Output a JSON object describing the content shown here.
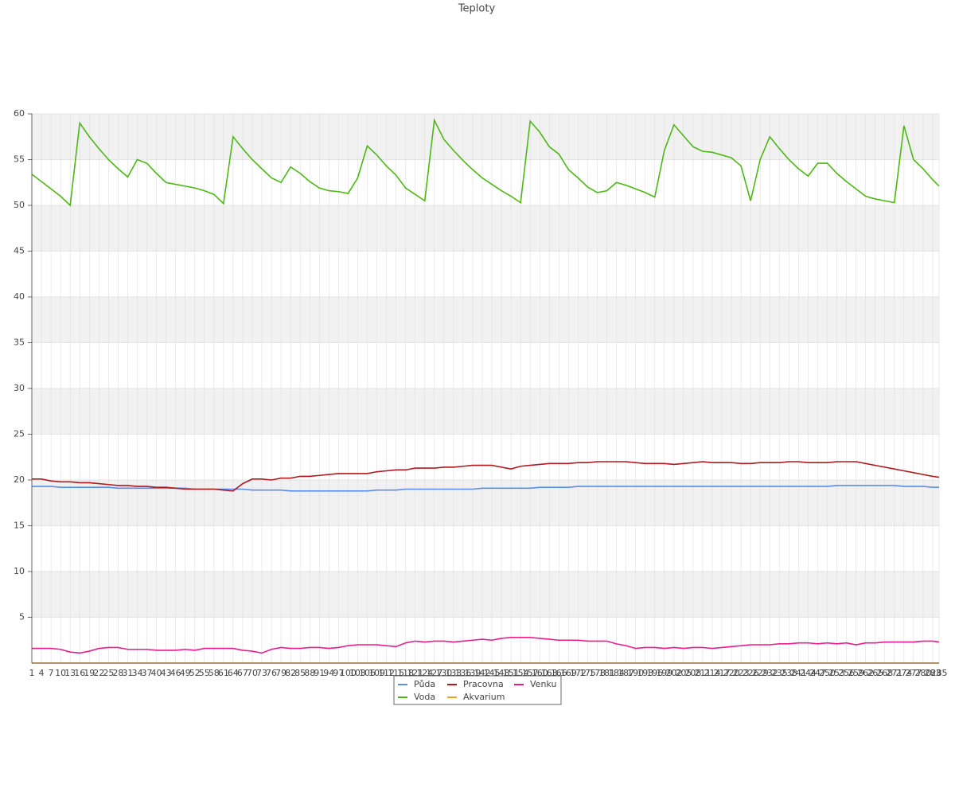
{
  "chart_data": {
    "type": "line",
    "title": "Teploty",
    "x": [
      1,
      4,
      7,
      10,
      13,
      16,
      19,
      22,
      25,
      28,
      31,
      34,
      37,
      40,
      43,
      46,
      49,
      52,
      55,
      58,
      61,
      64,
      67,
      70,
      73,
      76,
      79,
      82,
      85,
      88,
      91,
      94,
      97,
      100,
      103,
      106,
      109,
      112,
      115,
      118,
      121,
      124,
      127,
      130,
      133,
      136,
      139,
      142,
      145,
      148,
      151,
      154,
      157,
      160,
      163,
      166,
      169,
      172,
      175,
      178,
      181,
      184,
      187,
      190,
      193,
      196,
      199,
      202,
      205,
      208,
      211,
      214,
      217,
      220,
      223,
      226,
      229,
      232,
      235,
      238,
      241,
      244,
      247,
      250,
      253,
      256,
      259,
      262,
      265,
      268,
      271,
      274,
      277,
      280,
      283,
      285
    ],
    "xlim": [
      1,
      285
    ],
    "ylim": [
      0,
      60
    ],
    "yticks": [
      5,
      10,
      15,
      20,
      25,
      30,
      35,
      40,
      45,
      50,
      55,
      60
    ],
    "grid": true,
    "legend": "bottom",
    "series": [
      {
        "name": "Půda",
        "color": "#5b8def",
        "values": [
          19.3,
          19.3,
          19.3,
          19.2,
          19.2,
          19.2,
          19.2,
          19.2,
          19.2,
          19.1,
          19.1,
          19.1,
          19.1,
          19.1,
          19.1,
          19.1,
          19.1,
          19.0,
          19.0,
          19.0,
          19.0,
          19.0,
          19.0,
          18.9,
          18.9,
          18.9,
          18.9,
          18.8,
          18.8,
          18.8,
          18.8,
          18.8,
          18.8,
          18.8,
          18.8,
          18.8,
          18.9,
          18.9,
          18.9,
          19.0,
          19.0,
          19.0,
          19.0,
          19.0,
          19.0,
          19.0,
          19.0,
          19.1,
          19.1,
          19.1,
          19.1,
          19.1,
          19.1,
          19.2,
          19.2,
          19.2,
          19.2,
          19.3,
          19.3,
          19.3,
          19.3,
          19.3,
          19.3,
          19.3,
          19.3,
          19.3,
          19.3,
          19.3,
          19.3,
          19.3,
          19.3,
          19.3,
          19.3,
          19.3,
          19.3,
          19.3,
          19.3,
          19.3,
          19.3,
          19.3,
          19.3,
          19.3,
          19.3,
          19.3,
          19.4,
          19.4,
          19.4,
          19.4,
          19.4,
          19.4,
          19.4,
          19.3,
          19.3,
          19.3,
          19.2,
          19.2
        ]
      },
      {
        "name": "Voda",
        "color": "#4cb814",
        "values": [
          53.4,
          52.6,
          51.8,
          51.0,
          50.0,
          59.0,
          57.5,
          56.2,
          55.0,
          54.0,
          53.1,
          55.0,
          54.6,
          53.5,
          52.5,
          52.3,
          52.1,
          51.9,
          51.6,
          51.2,
          50.2,
          57.5,
          56.2,
          55.0,
          54.0,
          53.0,
          52.5,
          54.2,
          53.5,
          52.6,
          51.9,
          51.6,
          51.5,
          51.3,
          53.0,
          56.5,
          55.5,
          54.3,
          53.3,
          51.9,
          51.2,
          50.5,
          59.3,
          57.2,
          56.0,
          54.9,
          53.9,
          53.0,
          52.3,
          51.6,
          51.0,
          50.3,
          59.2,
          58.0,
          56.4,
          55.6,
          53.9,
          53.0,
          52.0,
          51.4,
          51.6,
          52.5,
          52.2,
          51.8,
          51.4,
          50.9,
          56.0,
          58.8,
          57.6,
          56.4,
          55.9,
          55.8,
          55.5,
          55.2,
          54.3,
          50.5,
          55.0,
          57.5,
          56.2,
          55.0,
          54.0,
          53.2,
          54.6,
          54.6,
          53.5,
          52.6,
          51.8,
          51.0,
          50.7,
          50.5,
          50.3,
          58.7,
          55.0,
          54.0,
          52.8,
          52.1
        ]
      },
      {
        "name": "Pracovna",
        "color": "#b0191e",
        "values": [
          20.1,
          20.1,
          19.9,
          19.8,
          19.8,
          19.7,
          19.7,
          19.6,
          19.5,
          19.4,
          19.4,
          19.3,
          19.3,
          19.2,
          19.2,
          19.1,
          19.0,
          19.0,
          19.0,
          19.0,
          18.9,
          18.8,
          19.6,
          20.1,
          20.1,
          20.0,
          20.2,
          20.2,
          20.4,
          20.4,
          20.5,
          20.6,
          20.7,
          20.7,
          20.7,
          20.7,
          20.9,
          21.0,
          21.1,
          21.1,
          21.3,
          21.3,
          21.3,
          21.4,
          21.4,
          21.5,
          21.6,
          21.6,
          21.6,
          21.4,
          21.2,
          21.5,
          21.6,
          21.7,
          21.8,
          21.8,
          21.8,
          21.9,
          21.9,
          22.0,
          22.0,
          22.0,
          22.0,
          21.9,
          21.8,
          21.8,
          21.8,
          21.7,
          21.8,
          21.9,
          22.0,
          21.9,
          21.9,
          21.9,
          21.8,
          21.8,
          21.9,
          21.9,
          21.9,
          22.0,
          22.0,
          21.9,
          21.9,
          21.9,
          22.0,
          22.0,
          22.0,
          21.8,
          21.6,
          21.4,
          21.2,
          21.0,
          20.8,
          20.6,
          20.4,
          20.3
        ]
      },
      {
        "name": "Akvarium",
        "color": "#f0a020",
        "values": [
          0,
          0,
          0,
          0,
          0,
          0,
          0,
          0,
          0,
          0,
          0,
          0,
          0,
          0,
          0,
          0,
          0,
          0,
          0,
          0,
          0,
          0,
          0,
          0,
          0,
          0,
          0,
          0,
          0,
          0,
          0,
          0,
          0,
          0,
          0,
          0,
          0,
          0,
          0,
          0,
          0,
          0,
          0,
          0,
          0,
          0,
          0,
          0,
          0,
          0,
          0,
          0,
          0,
          0,
          0,
          0,
          0,
          0,
          0,
          0,
          0,
          0,
          0,
          0,
          0,
          0,
          0,
          0,
          0,
          0,
          0,
          0,
          0,
          0,
          0,
          0,
          0,
          0,
          0,
          0,
          0,
          0,
          0,
          0,
          0,
          0,
          0,
          0,
          0,
          0,
          0,
          0,
          0,
          0,
          0,
          0
        ]
      },
      {
        "name": "Venku",
        "color": "#ec1c8c",
        "values": [
          1.6,
          1.6,
          1.6,
          1.5,
          1.2,
          1.1,
          1.3,
          1.6,
          1.7,
          1.7,
          1.5,
          1.5,
          1.5,
          1.4,
          1.4,
          1.4,
          1.5,
          1.4,
          1.6,
          1.6,
          1.6,
          1.6,
          1.4,
          1.3,
          1.1,
          1.5,
          1.7,
          1.6,
          1.6,
          1.7,
          1.7,
          1.6,
          1.7,
          1.9,
          2.0,
          2.0,
          2.0,
          1.9,
          1.8,
          2.2,
          2.4,
          2.3,
          2.4,
          2.4,
          2.3,
          2.4,
          2.5,
          2.6,
          2.5,
          2.7,
          2.8,
          2.8,
          2.8,
          2.7,
          2.6,
          2.5,
          2.5,
          2.5,
          2.4,
          2.4,
          2.4,
          2.1,
          1.9,
          1.6,
          1.7,
          1.7,
          1.6,
          1.7,
          1.6,
          1.7,
          1.7,
          1.6,
          1.7,
          1.8,
          1.9,
          2.0,
          2.0,
          2.0,
          2.1,
          2.1,
          2.2,
          2.2,
          2.1,
          2.2,
          2.1,
          2.2,
          2.0,
          2.2,
          2.2,
          2.3,
          2.3,
          2.3,
          2.3,
          2.4,
          2.4,
          2.3
        ]
      }
    ]
  }
}
